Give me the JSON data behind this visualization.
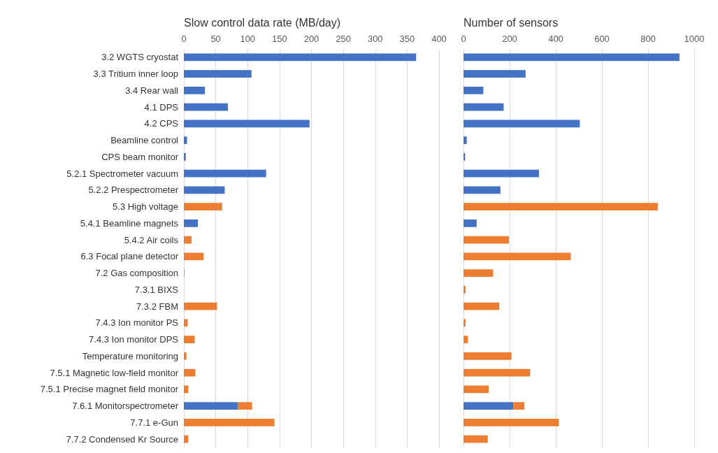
{
  "chart_data": [
    {
      "type": "bar",
      "orientation": "horizontal",
      "stacked": true,
      "xlabel": "Slow control data rate (MB/day)",
      "categories": [
        "3.2 WGTS cryostat",
        "3.3 Tritium inner loop",
        "3.4 Rear wall",
        "4.1 DPS",
        "4.2 CPS",
        "Beamline control",
        "CPS beam monitor",
        "5.2.1 Spectrometer vacuum",
        "5.2.2 Prespectrometer",
        "5.3 High voltage",
        "5.4.1 Beamline magnets",
        "5.4.2 Air coils",
        "6.3 Focal plane detector",
        "7.2 Gas composition",
        "7.3.1 BIXS",
        "7.3.2 FBM",
        "7.4.3 Ion monitor PS",
        "7.4.3 Ion monitor DPS",
        "Temperature monitoring",
        "7.5.1 Magnetic low-field monitor",
        "7.5.1 Precise magnet field monitor",
        "7.6.1 Monitorspectrometer",
        "7.7.1 e-Gun",
        "7.7.2 Condensed Kr Source"
      ],
      "series": [
        {
          "color": "#4472c4",
          "values": [
            364,
            106,
            33,
            69,
            197,
            5,
            3,
            129,
            64,
            null,
            22,
            null,
            null,
            null,
            null,
            null,
            null,
            null,
            null,
            null,
            null,
            85,
            null,
            null
          ]
        },
        {
          "color": "#ed7d31",
          "values": [
            null,
            null,
            null,
            null,
            null,
            null,
            null,
            null,
            null,
            60,
            null,
            12,
            31,
            1,
            0,
            52,
            6,
            17,
            4,
            18,
            7,
            22,
            142,
            7
          ]
        }
      ],
      "xlim": [
        0,
        400
      ],
      "xticks": [
        0,
        50,
        100,
        150,
        200,
        250,
        300,
        350,
        400
      ],
      "grid": "x"
    },
    {
      "type": "bar",
      "orientation": "horizontal",
      "stacked": true,
      "xlabel": "Number of sensors",
      "categories": [
        null,
        null,
        null,
        null,
        null,
        null,
        null,
        null,
        null,
        null,
        null,
        null,
        null,
        null,
        null,
        null,
        null,
        null,
        null,
        null,
        null,
        null,
        null,
        null
      ],
      "series": [
        {
          "color": "#4472c4",
          "values": [
            936,
            269,
            86,
            174,
            504,
            14,
            7,
            327,
            160,
            null,
            57,
            null,
            null,
            null,
            null,
            null,
            null,
            null,
            null,
            null,
            null,
            216,
            null,
            null
          ]
        },
        {
          "color": "#ed7d31",
          "values": [
            null,
            null,
            null,
            null,
            null,
            null,
            null,
            null,
            null,
            842,
            null,
            197,
            465,
            128,
            9,
            155,
            9,
            19,
            208,
            289,
            109,
            48,
            413,
            105
          ]
        }
      ],
      "xlim": [
        0,
        1000
      ],
      "xticks": [
        0,
        200,
        400,
        600,
        800,
        1000
      ],
      "grid": "x"
    }
  ]
}
